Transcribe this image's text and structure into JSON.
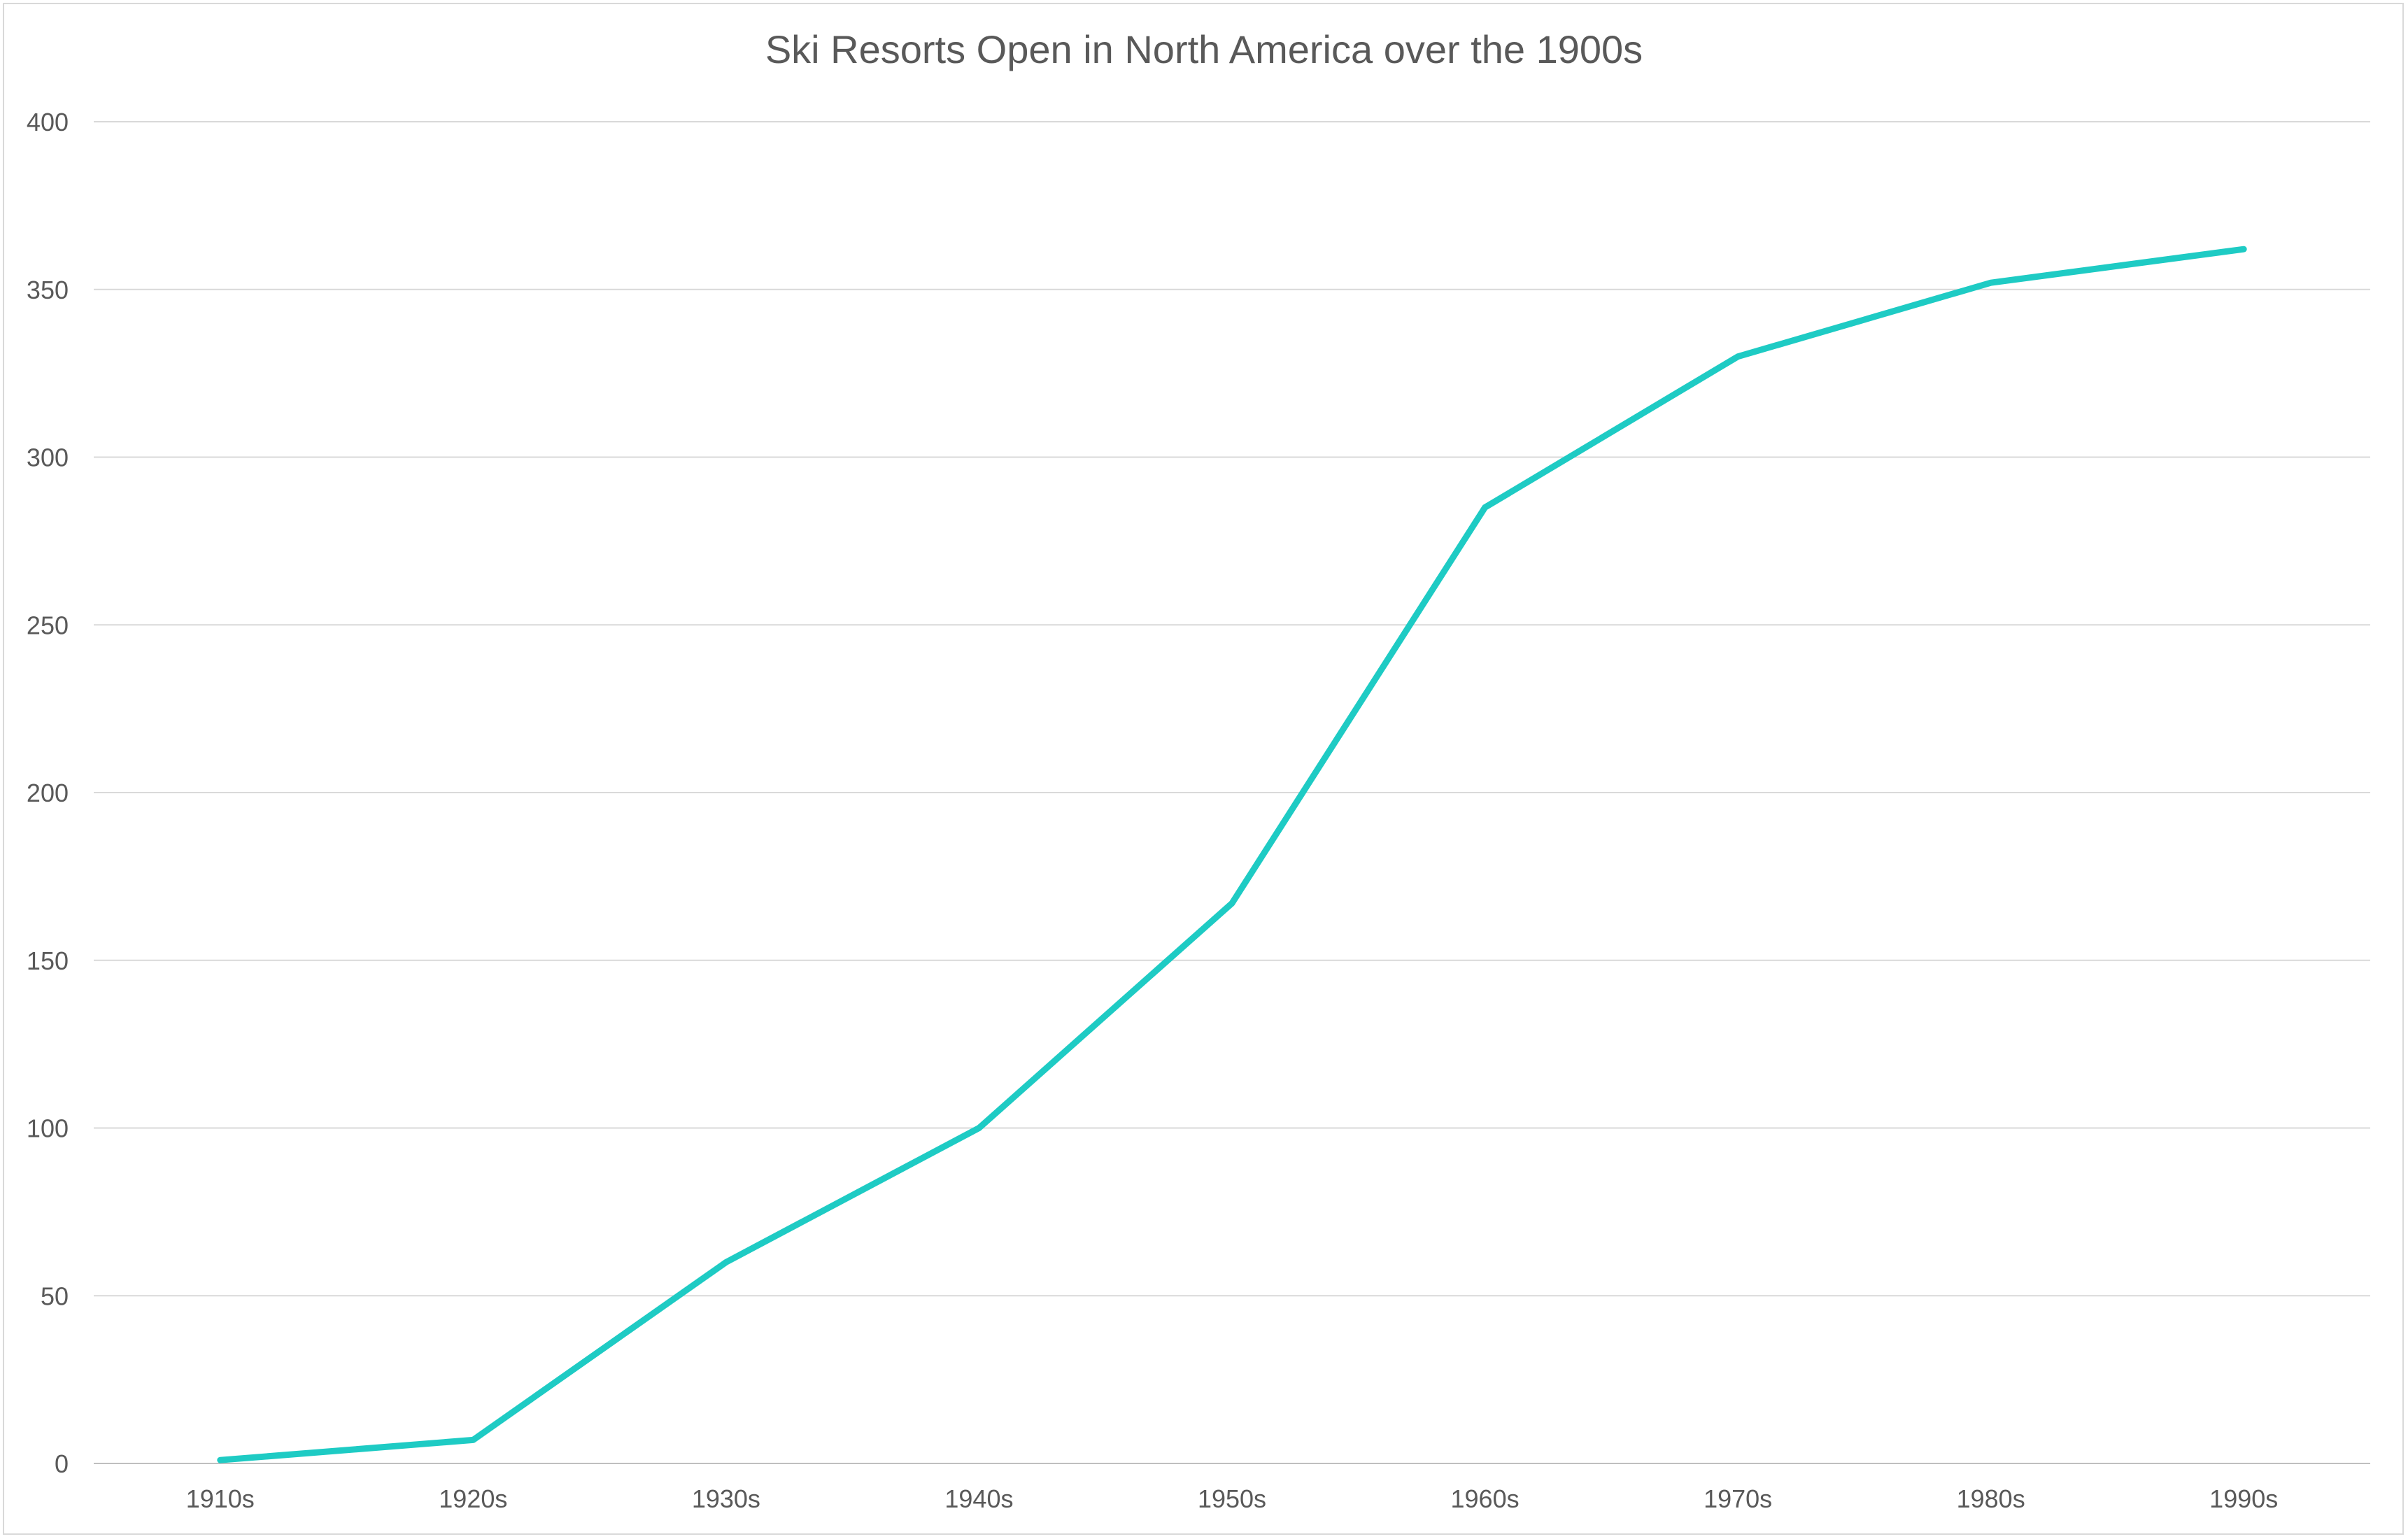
{
  "chart_data": {
    "type": "line",
    "title": "Ski Resorts Open in North America over the 1900s",
    "xlabel": "",
    "ylabel": "",
    "categories": [
      "1910s",
      "1920s",
      "1930s",
      "1940s",
      "1950s",
      "1960s",
      "1970s",
      "1980s",
      "1990s"
    ],
    "series": [
      {
        "name": "Ski Resorts Open",
        "values": [
          1,
          7,
          60,
          100,
          167,
          285,
          330,
          352,
          362
        ],
        "color": "#1ecbc4"
      }
    ],
    "ylim": [
      0,
      400
    ],
    "yticks": [
      0,
      50,
      100,
      150,
      200,
      250,
      300,
      350,
      400
    ],
    "grid": true,
    "legend": "none"
  }
}
